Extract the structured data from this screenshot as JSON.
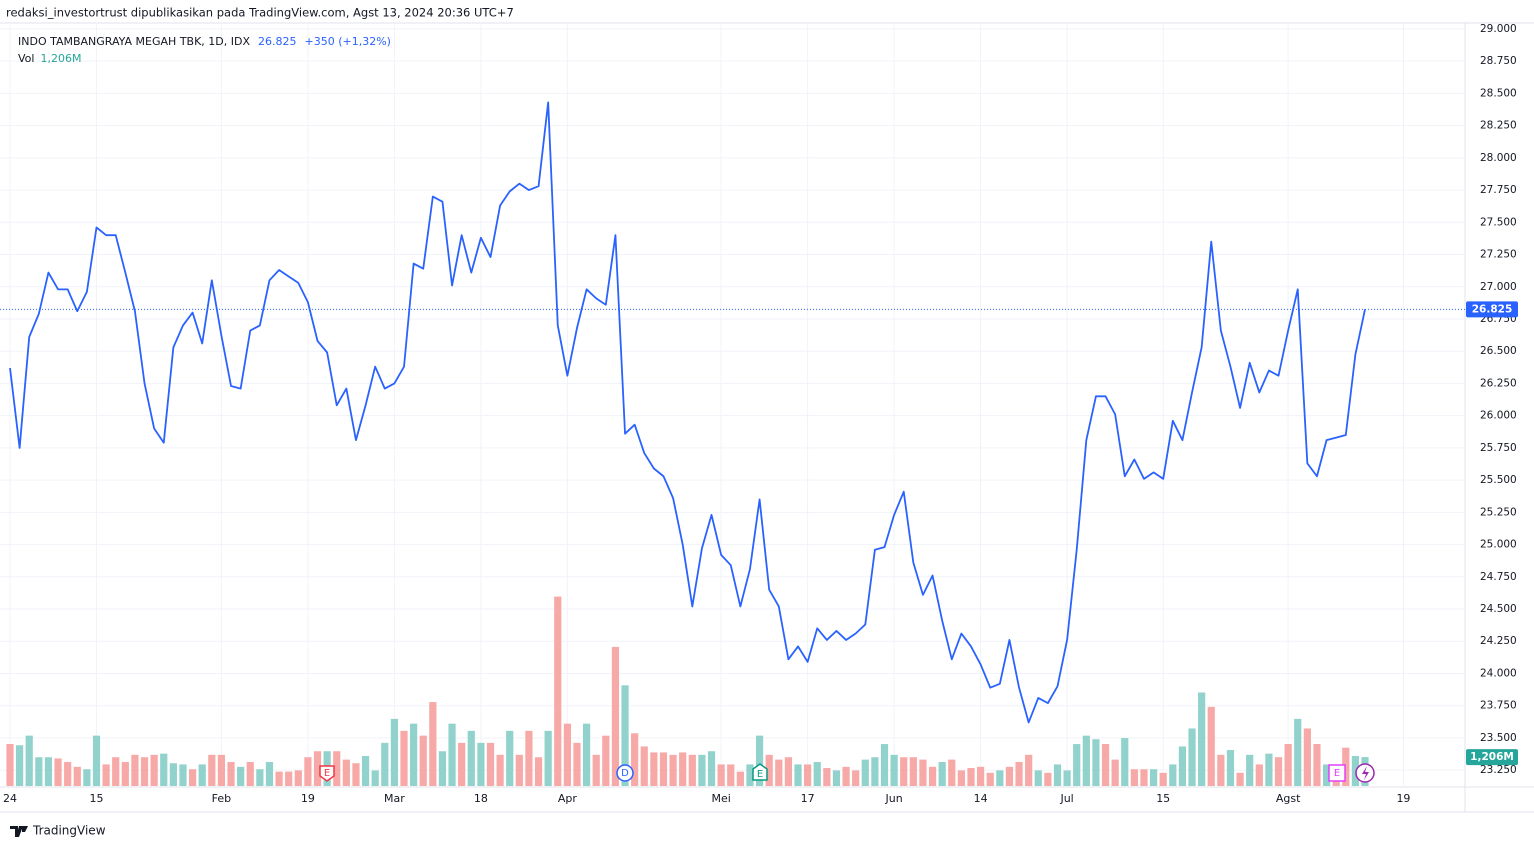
{
  "header": "redaksi_investortrust dipublikasikan pada TradingView.com, Agst 13, 2024 20:36 UTC+7",
  "footer": "TradingView",
  "chart_data": {
    "type": "line",
    "change": {
      "value": 350,
      "label": "+350 (+1,32%)"
    },
    "categories": [
      "24",
      null,
      null,
      null,
      null,
      null,
      null,
      null,
      null,
      "15",
      null,
      null,
      null,
      null,
      null,
      null,
      null,
      null,
      null,
      null,
      null,
      null,
      "Feb",
      null,
      null,
      null,
      null,
      null,
      null,
      null,
      null,
      "19",
      null,
      null,
      null,
      null,
      null,
      null,
      null,
      null,
      "Mar",
      null,
      null,
      null,
      null,
      null,
      null,
      null,
      null,
      "18",
      null,
      null,
      null,
      null,
      null,
      null,
      null,
      null,
      "Apr",
      null,
      null,
      null,
      null,
      null,
      null,
      null,
      null,
      null,
      null,
      null,
      null,
      null,
      null,
      null,
      "Mei",
      null,
      null,
      null,
      null,
      null,
      null,
      null,
      null,
      "17",
      null,
      null,
      null,
      null,
      null,
      null,
      null,
      null,
      "Jun",
      null,
      null,
      null,
      null,
      null,
      null,
      null,
      null,
      "14",
      null,
      null,
      null,
      null,
      null,
      null,
      null,
      null,
      "Jul",
      null,
      null,
      null,
      null,
      null,
      null,
      null,
      null,
      null,
      "15",
      null,
      null,
      null,
      null,
      null,
      null,
      null,
      null,
      null,
      null,
      null,
      null,
      "Agst",
      null,
      null,
      null,
      null,
      null,
      null,
      null,
      null,
      null,
      null,
      null,
      "19"
    ],
    "series": [
      {
        "name": "INDO TAMBANGRAYA MEGAH TBK, 1D, IDX",
        "color": "#2962ff",
        "last_label": "26.825",
        "values": [
          26370,
          25750,
          26610,
          26790,
          27110,
          26980,
          26980,
          26810,
          26960,
          27460,
          27400,
          27400,
          27110,
          26810,
          26250,
          25900,
          25790,
          26530,
          26700,
          26800,
          26560,
          27050,
          26620,
          26230,
          26210,
          26660,
          26700,
          27050,
          27130,
          27080,
          27030,
          26880,
          26580,
          26490,
          26080,
          26210,
          25810,
          26080,
          26380,
          26210,
          26250,
          26380,
          27180,
          27140,
          27700,
          27660,
          27010,
          27400,
          27110,
          27380,
          27230,
          27630,
          27740,
          27800,
          27750,
          27780,
          28430,
          26700,
          26310,
          26680,
          26980,
          26910,
          26860,
          27400,
          25860,
          25930,
          25710,
          25590,
          25530,
          25360,
          25000,
          24520,
          24970,
          25230,
          24920,
          24840,
          24520,
          24810,
          25350,
          24650,
          24520,
          24110,
          24210,
          24090,
          24350,
          24260,
          24330,
          24260,
          24310,
          24380,
          24960,
          24980,
          25230,
          25410,
          24860,
          24610,
          24760,
          24410,
          24110,
          24310,
          24210,
          24070,
          23890,
          23920,
          24260,
          23890,
          23620,
          23810,
          23770,
          23900,
          24260,
          24960,
          25810,
          26150,
          26150,
          26010,
          25530,
          25660,
          25510,
          25560,
          25510,
          25960,
          25810,
          26180,
          26530,
          27350,
          26660,
          26380,
          26060,
          26410,
          26180,
          26350,
          26310,
          26660,
          26980,
          25630,
          25530,
          25810,
          25830,
          25850,
          26475,
          26825,
          null,
          null,
          null,
          null
        ]
      },
      {
        "name": "Vol",
        "type": "bar",
        "axis": "y2",
        "last_label": "1,206M",
        "label_color": "#26a69a",
        "values": [
          1.75,
          1.7,
          2.1,
          1.2,
          1.2,
          1.15,
          1.0,
          0.8,
          0.7,
          2.1,
          0.9,
          1.2,
          1.0,
          1.3,
          1.2,
          1.3,
          1.35,
          0.95,
          0.9,
          0.7,
          0.9,
          1.3,
          1.3,
          1.0,
          0.8,
          1.0,
          0.7,
          1.0,
          0.6,
          0.6,
          0.65,
          1.2,
          1.45,
          1.45,
          1.45,
          1.1,
          0.95,
          1.25,
          0.65,
          1.8,
          2.8,
          2.3,
          2.6,
          2.1,
          3.5,
          1.45,
          2.6,
          1.8,
          2.3,
          1.8,
          1.8,
          1.3,
          2.3,
          1.3,
          2.3,
          1.2,
          2.3,
          7.9,
          2.6,
          1.8,
          2.6,
          1.3,
          2.1,
          5.8,
          4.2,
          2.2,
          1.65,
          1.4,
          1.4,
          1.3,
          1.4,
          1.3,
          1.3,
          1.45,
          0.9,
          0.9,
          0.6,
          0.9,
          2.1,
          1.3,
          1.1,
          1.2,
          0.9,
          0.9,
          1.0,
          0.75,
          0.65,
          0.8,
          0.65,
          1.1,
          1.2,
          1.75,
          1.3,
          1.2,
          1.2,
          1.1,
          0.8,
          1.0,
          1.1,
          0.65,
          0.75,
          0.8,
          0.55,
          0.65,
          0.8,
          1.0,
          1.3,
          0.65,
          0.55,
          0.9,
          0.65,
          1.75,
          2.1,
          1.95,
          1.75,
          1.1,
          2.0,
          0.7,
          0.7,
          0.7,
          0.55,
          0.9,
          1.65,
          2.4,
          3.9,
          3.3,
          1.3,
          1.5,
          0.55,
          1.3,
          0.9,
          1.35,
          1.2,
          1.75,
          2.8,
          2.4,
          1.75,
          0.9,
          0.7,
          1.6,
          1.25,
          1.206,
          null,
          null,
          null,
          null
        ],
        "colors": [
          "#f7a9a7",
          "#92d2cc",
          "#92d2cc",
          "#92d2cc",
          "#92d2cc",
          "#f7a9a7",
          "#f7a9a7",
          "#f7a9a7",
          "#92d2cc",
          "#92d2cc",
          "#f7a9a7",
          "#f7a9a7",
          "#f7a9a7",
          "#f7a9a7",
          "#f7a9a7",
          "#f7a9a7",
          "#92d2cc",
          "#92d2cc",
          "#92d2cc",
          "#f7a9a7",
          "#92d2cc",
          "#f7a9a7",
          "#f7a9a7",
          "#f7a9a7",
          "#92d2cc",
          "#f7a9a7",
          "#92d2cc",
          "#92d2cc",
          "#f7a9a7",
          "#f7a9a7",
          "#f7a9a7",
          "#f7a9a7",
          "#f7a9a7",
          "#92d2cc",
          "#f7a9a7",
          "#f7a9a7",
          "#f7a9a7",
          "#92d2cc",
          "#92d2cc",
          "#92d2cc",
          "#92d2cc",
          "#f7a9a7",
          "#92d2cc",
          "#f7a9a7",
          "#f7a9a7",
          "#92d2cc",
          "#92d2cc",
          "#f7a9a7",
          "#92d2cc",
          "#92d2cc",
          "#f7a9a7",
          "#f7a9a7",
          "#92d2cc",
          "#f7a9a7",
          "#f7a9a7",
          "#f7a9a7",
          "#92d2cc",
          "#f7a9a7",
          "#f7a9a7",
          "#f7a9a7",
          "#92d2cc",
          "#f7a9a7",
          "#f7a9a7",
          "#f7a9a7",
          "#92d2cc",
          "#f7a9a7",
          "#f7a9a7",
          "#f7a9a7",
          "#f7a9a7",
          "#f7a9a7",
          "#f7a9a7",
          "#f7a9a7",
          "#92d2cc",
          "#92d2cc",
          "#f7a9a7",
          "#f7a9a7",
          "#f7a9a7",
          "#92d2cc",
          "#92d2cc",
          "#f7a9a7",
          "#f7a9a7",
          "#f7a9a7",
          "#92d2cc",
          "#f7a9a7",
          "#92d2cc",
          "#f7a9a7",
          "#92d2cc",
          "#f7a9a7",
          "#f7a9a7",
          "#92d2cc",
          "#92d2cc",
          "#92d2cc",
          "#92d2cc",
          "#f7a9a7",
          "#f7a9a7",
          "#f7a9a7",
          "#f7a9a7",
          "#92d2cc",
          "#f7a9a7",
          "#f7a9a7",
          "#f7a9a7",
          "#f7a9a7",
          "#f7a9a7",
          "#92d2cc",
          "#f7a9a7",
          "#f7a9a7",
          "#f7a9a7",
          "#92d2cc",
          "#f7a9a7",
          "#92d2cc",
          "#92d2cc",
          "#92d2cc",
          "#92d2cc",
          "#92d2cc",
          "#f7a9a7",
          "#f7a9a7",
          "#92d2cc",
          "#f7a9a7",
          "#f7a9a7",
          "#92d2cc",
          "#f7a9a7",
          "#92d2cc",
          "#92d2cc",
          "#92d2cc",
          "#92d2cc",
          "#f7a9a7",
          "#f7a9a7",
          "#92d2cc",
          "#f7a9a7",
          "#92d2cc",
          "#f7a9a7",
          "#92d2cc",
          "#f7a9a7",
          "#f7a9a7",
          "#92d2cc",
          "#f7a9a7",
          "#f7a9a7",
          "#92d2cc",
          "#f7a9a7",
          "#f7a9a7",
          "#92d2cc",
          "#92d2cc",
          "#92d2cc",
          "#92d2cc",
          "#92d2cc",
          "#92d2cc"
        ]
      }
    ],
    "ylim": [
      23127,
      29116
    ],
    "yticks": [
      {
        "value": 23250,
        "label": "23.250"
      },
      {
        "value": 23500,
        "label": "23.500"
      },
      {
        "value": 23750,
        "label": "23.750"
      },
      {
        "value": 24000,
        "label": "24.000"
      },
      {
        "value": 24250,
        "label": "24.250"
      },
      {
        "value": 24500,
        "label": "24.500"
      },
      {
        "value": 24750,
        "label": "24.750"
      },
      {
        "value": 25000,
        "label": "25.000"
      },
      {
        "value": 25250,
        "label": "25.250"
      },
      {
        "value": 25500,
        "label": "25.500"
      },
      {
        "value": 25750,
        "label": "25.750"
      },
      {
        "value": 26000,
        "label": "26.000"
      },
      {
        "value": 26250,
        "label": "26.250"
      },
      {
        "value": 26500,
        "label": "26.500"
      },
      {
        "value": 26750,
        "label": "26.750"
      },
      {
        "value": 27000,
        "label": "27.000"
      },
      {
        "value": 27250,
        "label": "27.250"
      },
      {
        "value": 27500,
        "label": "27.500"
      },
      {
        "value": 27750,
        "label": "27.750"
      },
      {
        "value": 28000,
        "label": "28.000"
      },
      {
        "value": 28250,
        "label": "28.250"
      },
      {
        "value": 28500,
        "label": "28.500"
      },
      {
        "value": 28750,
        "label": "28.750"
      },
      {
        "value": 29000,
        "label": "29.000"
      }
    ],
    "y2lim": [
      0,
      32.2
    ],
    "grid": true,
    "events": [
      {
        "label": "E",
        "color": "#f23645"
      },
      {
        "label": "D",
        "color": "#2962ff"
      },
      {
        "label": "E",
        "color": "#089981"
      },
      {
        "label": "E",
        "color": "#e040fb"
      }
    ]
  }
}
